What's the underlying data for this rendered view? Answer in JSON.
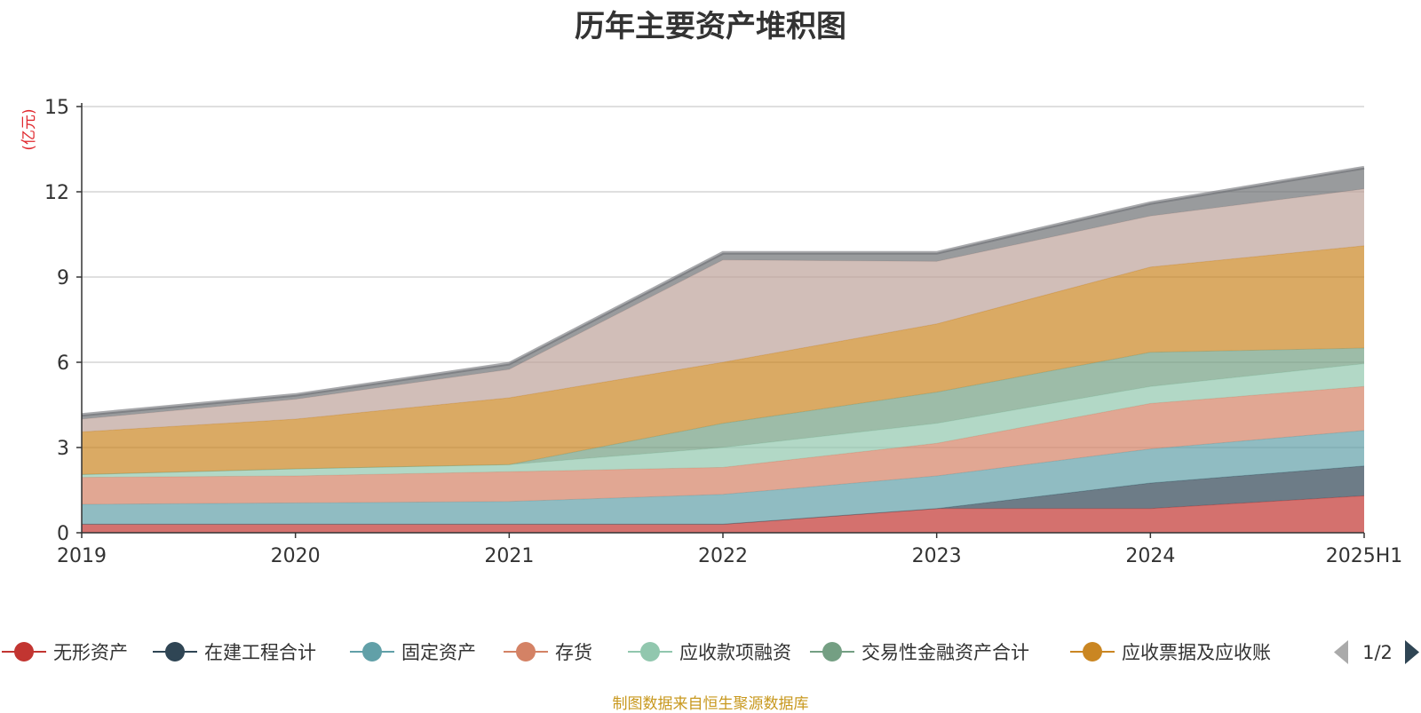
{
  "chart_data": {
    "type": "area",
    "stacked": true,
    "title": "历年主要资产堆积图",
    "ylabel": "(亿元)",
    "xlabel": "",
    "categories": [
      "2019",
      "2020",
      "2021",
      "2022",
      "2023",
      "2024",
      "2025H1"
    ],
    "ylim": [
      0,
      15
    ],
    "yticks": [
      "0",
      "3",
      "6",
      "9",
      "12",
      "15"
    ],
    "grid": true,
    "series": [
      {
        "name": "无形资产",
        "color": "#c23531",
        "values": [
          0.3,
          0.3,
          0.3,
          0.3,
          0.85,
          0.85,
          1.3
        ]
      },
      {
        "name": "在建工程合计",
        "color": "#2f4554",
        "values": [
          0.0,
          0.0,
          0.0,
          0.0,
          0.0,
          0.9,
          1.05
        ]
      },
      {
        "name": "固定资产",
        "color": "#61a0a8",
        "values": [
          0.7,
          0.75,
          0.8,
          1.05,
          1.15,
          1.2,
          1.25
        ]
      },
      {
        "name": "存货",
        "color": "#d48265",
        "values": [
          0.95,
          0.95,
          1.05,
          0.95,
          1.15,
          1.6,
          1.55
        ]
      },
      {
        "name": "应收款项融资",
        "color": "#91c7ae",
        "values": [
          0.1,
          0.25,
          0.25,
          0.7,
          0.7,
          0.6,
          0.8
        ]
      },
      {
        "name": "交易性金融资产合计",
        "color": "#749f83",
        "values": [
          0.0,
          0.0,
          0.0,
          0.85,
          1.1,
          1.2,
          0.55
        ]
      },
      {
        "name": "应收票据及应收账",
        "color": "#ca8622",
        "values": [
          1.5,
          1.75,
          2.35,
          2.15,
          2.4,
          3.0,
          3.6
        ]
      },
      {
        "name": "",
        "color": "#bda29a",
        "values": [
          0.45,
          0.7,
          1.0,
          3.6,
          2.2,
          1.8,
          2.0
        ]
      },
      {
        "name": "",
        "color": "#6e7074",
        "values": [
          0.15,
          0.15,
          0.2,
          0.25,
          0.3,
          0.45,
          0.75
        ]
      }
    ],
    "legend_position": "bottom",
    "legend_page": "1/2"
  },
  "source_note": "制图数据来自恒生聚源数据库",
  "colors": {
    "axis": "#333333",
    "grid": "#cccccc",
    "ylabel": "#e0282e",
    "source": "#c8981e",
    "pager_active": "#2f4554",
    "pager_inactive": "#aaaaaa"
  }
}
